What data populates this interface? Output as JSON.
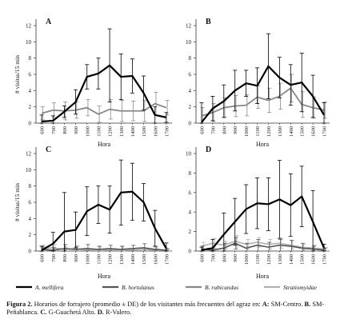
{
  "figure": {
    "caption_lead": "Figura 2.",
    "caption_text": "Horarios de forrajero (promedio ± DE) de los visitantes más frecuentes del agraz en:",
    "caption_parts": [
      {
        "key": "A:",
        "text": "SM-Centro."
      },
      {
        "key": "B.",
        "text": "SM-Peñablanca."
      },
      {
        "key": "C.",
        "text": "G-Guachetá Alto."
      },
      {
        "key": "D.",
        "text": "R-Valero."
      }
    ]
  },
  "legend": {
    "items": [
      {
        "label": "A. mellifera",
        "color": "#000000"
      },
      {
        "label": "B. hortulanus",
        "color": "#555555"
      },
      {
        "label": "B. rubicundus",
        "color": "#888888"
      },
      {
        "label": "Stratiomyidae",
        "color": "#b0b0b0"
      }
    ]
  },
  "chart_data": [
    {
      "type": "line",
      "panel": "A",
      "categories": [
        "600",
        "700",
        "800",
        "900",
        "1000",
        "1100",
        "1200",
        "1300",
        "1400",
        "1500",
        "1600",
        "1700"
      ],
      "ylabel": "# visitas/15 min",
      "ylim": [
        0,
        12
      ],
      "yticks": [
        0,
        2,
        4,
        6,
        8,
        10,
        12
      ],
      "series": [
        {
          "name": "A. mellifera",
          "color": "#000000",
          "width": 2.2,
          "values": [
            0.2,
            0.3,
            1.4,
            2.6,
            5.7,
            6.1,
            7.1,
            5.7,
            5.8,
            3.7,
            1.0,
            0.7
          ],
          "err": [
            0.8,
            0.6,
            0.7,
            1.5,
            1.5,
            1.9,
            4.5,
            2.8,
            2.1,
            2.1,
            1.0,
            0.6
          ]
        },
        {
          "name": "B. rubicundus",
          "color": "#888888",
          "width": 1.8,
          "values": [
            1.2,
            1.6,
            1.5,
            1.6,
            1.9,
            1.1,
            1.7,
            1.5,
            1.5,
            1.5,
            2.4,
            1.9
          ],
          "err": [
            0.8,
            0.9,
            1.1,
            1.0,
            1.0,
            1.0,
            1.2,
            1.3,
            1.2,
            1.3,
            1.4,
            0.9
          ]
        }
      ]
    },
    {
      "type": "line",
      "panel": "B",
      "categories": [
        "600",
        "700",
        "800",
        "900",
        "1000",
        "1100",
        "1200",
        "1300",
        "1400",
        "1500",
        "1600",
        "1700"
      ],
      "ylim": [
        0,
        12
      ],
      "yticks": [
        0,
        2,
        4,
        6,
        8,
        10,
        12
      ],
      "series": [
        {
          "name": "A. mellifera",
          "color": "#000000",
          "width": 2.2,
          "values": [
            0.1,
            1.8,
            2.7,
            4.0,
            4.9,
            4.6,
            7.0,
            5.6,
            4.7,
            5.0,
            3.3,
            1.0
          ],
          "err": [
            2.4,
            1.5,
            2.0,
            2.5,
            1.6,
            2.2,
            4.0,
            2.5,
            2.5,
            3.6,
            2.6,
            1.5
          ]
        },
        {
          "name": "B. rubicundus",
          "color": "#888888",
          "width": 1.8,
          "values": [
            0.9,
            1.3,
            1.9,
            2.1,
            2.2,
            3.2,
            2.8,
            3.3,
            4.3,
            2.3,
            1.9,
            1.6
          ],
          "err": [
            1.0,
            1.1,
            1.2,
            1.3,
            1.3,
            1.4,
            1.5,
            1.6,
            1.7,
            1.6,
            1.3,
            1.0
          ]
        }
      ]
    },
    {
      "type": "line",
      "panel": "C",
      "categories": [
        "600",
        "700",
        "800",
        "900",
        "1000",
        "1100",
        "1200",
        "1300",
        "1400",
        "1500",
        "1600",
        "1700"
      ],
      "ylabel": "# visitas/15 min",
      "ylim": [
        0,
        12
      ],
      "yticks": [
        0,
        2,
        4,
        6,
        8,
        10,
        12
      ],
      "series": [
        {
          "name": "A. mellifera",
          "color": "#000000",
          "width": 2.2,
          "values": [
            0.1,
            0.9,
            2.4,
            2.6,
            4.9,
            5.7,
            5.1,
            7.2,
            7.3,
            6.0,
            2.8,
            0.3
          ],
          "err": [
            0.5,
            1.4,
            4.8,
            2.2,
            3.0,
            2.3,
            2.9,
            4.0,
            3.5,
            2.3,
            2.2,
            0.7
          ]
        },
        {
          "name": "B. hortulanus",
          "color": "#555555",
          "width": 1.6,
          "values": [
            0.2,
            0.1,
            0.3,
            0.2,
            0.3,
            0.2,
            0.3,
            0.2,
            0.3,
            0.4,
            0.2,
            0.1
          ],
          "err": [
            0.3,
            0.3,
            0.5,
            0.4,
            0.5,
            0.4,
            0.4,
            0.4,
            0.4,
            0.5,
            0.3,
            0.2
          ]
        },
        {
          "name": "Stratiomyidae",
          "color": "#b0b0b0",
          "width": 1.6,
          "values": [
            0.3,
            0.4,
            0.2,
            0.3,
            0.1,
            0.2,
            0.1,
            0.2,
            0.1,
            0.2,
            0.1,
            0.1
          ],
          "err": [
            0.4,
            0.4,
            0.3,
            0.3,
            0.2,
            0.3,
            0.2,
            0.3,
            0.2,
            0.2,
            0.2,
            0.1
          ]
        }
      ]
    },
    {
      "type": "line",
      "panel": "D",
      "categories": [
        "600",
        "700",
        "800",
        "900",
        "1000",
        "1100",
        "1200",
        "1300",
        "1400",
        "1500",
        "1600",
        "1700"
      ],
      "ylim": [
        0,
        10
      ],
      "yticks": [
        0,
        2,
        4,
        6,
        8,
        10
      ],
      "series": [
        {
          "name": "A. mellifera",
          "color": "#000000",
          "width": 2.2,
          "values": [
            0.1,
            0.3,
            1.7,
            3.0,
            4.3,
            4.9,
            4.8,
            5.3,
            4.7,
            5.6,
            3.0,
            0.3
          ],
          "err": [
            0.3,
            0.9,
            2.2,
            2.4,
            2.5,
            2.6,
            2.7,
            4.0,
            3.2,
            3.1,
            3.2,
            0.4
          ]
        },
        {
          "name": "B. hortulanus",
          "color": "#555555",
          "width": 1.6,
          "values": [
            0.2,
            0.1,
            0.3,
            0.8,
            0.3,
            0.6,
            0.4,
            0.6,
            0.5,
            0.3,
            0.2,
            0.1
          ],
          "err": [
            0.3,
            0.4,
            0.5,
            0.6,
            0.5,
            0.6,
            0.5,
            0.6,
            0.6,
            0.5,
            0.3,
            0.2
          ]
        },
        {
          "name": "Stratiomyidae",
          "color": "#b0b0b0",
          "width": 1.6,
          "values": [
            0.5,
            0.8,
            0.6,
            1.0,
            0.7,
            0.9,
            0.7,
            0.8,
            0.6,
            0.4,
            0.3,
            0.2
          ],
          "err": [
            0.4,
            0.5,
            0.4,
            0.6,
            0.5,
            0.5,
            0.5,
            0.5,
            0.4,
            0.3,
            0.3,
            0.2
          ]
        }
      ]
    }
  ],
  "xaxis": {
    "label": "Hora"
  }
}
